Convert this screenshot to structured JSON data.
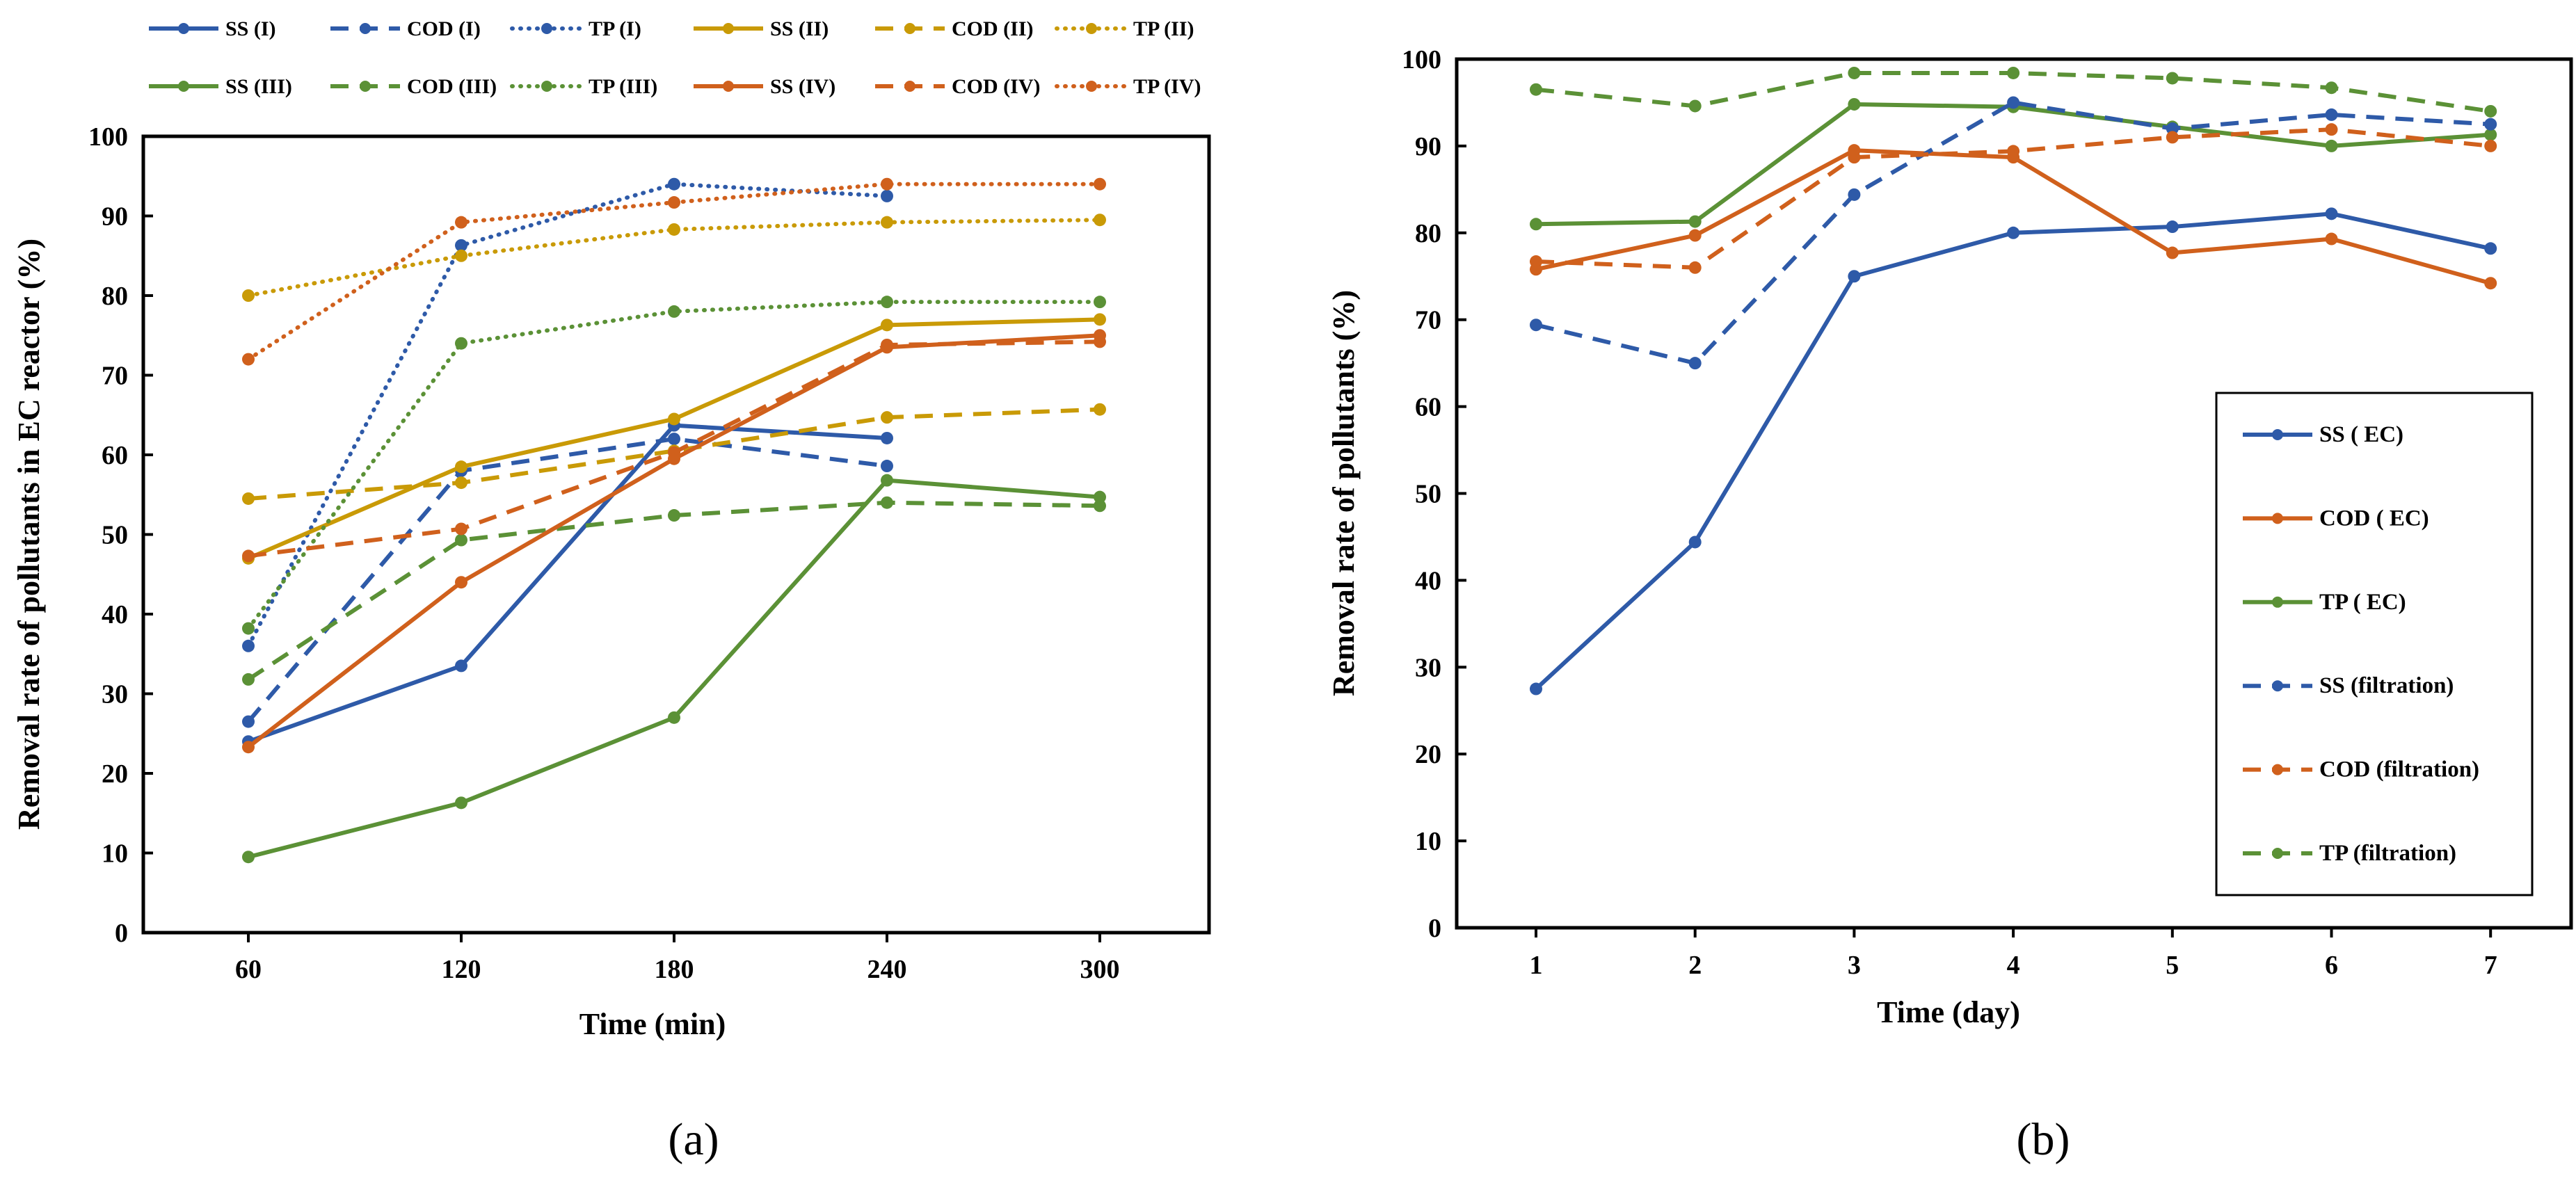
{
  "chart_data": [
    {
      "type": "line",
      "panel_label": "(a)",
      "xlabel": "Time (min)",
      "ylabel": "Removal rate of pollutants in EC reactor (%)",
      "categories": [
        "60",
        "120",
        "180",
        "240",
        "300"
      ],
      "ylim": [
        0,
        100
      ],
      "yticks": [
        0,
        10,
        20,
        30,
        40,
        50,
        60,
        70,
        80,
        90,
        100
      ],
      "grid": false,
      "legend_position": "top",
      "series": [
        {
          "name": "SS (I)",
          "color": "#2E5AA8",
          "style": "solid",
          "values": [
            24,
            33.5,
            63.7,
            62.1,
            null
          ]
        },
        {
          "name": "COD (I)",
          "color": "#2E5AA8",
          "style": "dashed",
          "values": [
            26.5,
            58,
            62,
            58.6,
            null
          ]
        },
        {
          "name": "TP (I)",
          "color": "#2E5AA8",
          "style": "dotted",
          "values": [
            36,
            86.3,
            94,
            92.5,
            null
          ]
        },
        {
          "name": "SS (II)",
          "color": "#C99A06",
          "style": "solid",
          "values": [
            47,
            58.5,
            64.5,
            76.3,
            77
          ]
        },
        {
          "name": "COD (II)",
          "color": "#C99A06",
          "style": "dashed",
          "values": [
            54.5,
            56.5,
            60.5,
            64.7,
            65.7
          ]
        },
        {
          "name": "TP (II)",
          "color": "#C99A06",
          "style": "dotted",
          "values": [
            80,
            85,
            88.3,
            89.2,
            89.5
          ]
        },
        {
          "name": "SS (III)",
          "color": "#5B9136",
          "style": "solid",
          "values": [
            9.5,
            16.3,
            27,
            56.8,
            54.7
          ]
        },
        {
          "name": "COD (III)",
          "color": "#5B9136",
          "style": "dashed",
          "values": [
            31.8,
            49.3,
            52.4,
            54,
            53.6
          ]
        },
        {
          "name": "TP (III)",
          "color": "#5B9136",
          "style": "dotted",
          "values": [
            38.2,
            74,
            78,
            79.2,
            79.2
          ]
        },
        {
          "name": "SS (IV)",
          "color": "#D0601C",
          "style": "solid",
          "values": [
            23.3,
            44,
            59.5,
            73.5,
            75
          ]
        },
        {
          "name": "COD (IV)",
          "color": "#D0601C",
          "style": "dashed",
          "values": [
            47.3,
            50.7,
            60.3,
            73.8,
            74.2
          ]
        },
        {
          "name": "TP (IV)",
          "color": "#D0601C",
          "style": "dotted",
          "values": [
            72,
            89.2,
            91.7,
            94,
            94
          ]
        }
      ]
    },
    {
      "type": "line",
      "panel_label": "(b)",
      "xlabel": "Time (day)",
      "ylabel": "Removal rate of pollutants (%)",
      "categories": [
        "1",
        "2",
        "3",
        "4",
        "5",
        "6",
        "7"
      ],
      "ylim": [
        0,
        100
      ],
      "yticks": [
        0,
        10,
        20,
        30,
        40,
        50,
        60,
        70,
        80,
        90,
        100
      ],
      "grid": false,
      "legend_position": "bottom-right",
      "series": [
        {
          "name": "SS ( EC)",
          "color": "#2E5AA8",
          "style": "solid",
          "values": [
            27.5,
            44.4,
            75,
            80,
            80.7,
            82.2,
            78.2
          ]
        },
        {
          "name": "COD ( EC)",
          "color": "#D0601C",
          "style": "solid",
          "values": [
            75.8,
            79.7,
            89.5,
            88.7,
            77.7,
            79.3,
            74.2
          ]
        },
        {
          "name": "TP ( EC)",
          "color": "#5B9136",
          "style": "solid",
          "values": [
            81,
            81.3,
            94.8,
            94.5,
            92.2,
            90,
            91.3
          ]
        },
        {
          "name": "SS (filtration)",
          "color": "#2E5AA8",
          "style": "dashed",
          "values": [
            69.4,
            65,
            84.4,
            95,
            92,
            93.6,
            92.5
          ]
        },
        {
          "name": "COD (filtration)",
          "color": "#D0601C",
          "style": "dashed",
          "values": [
            76.7,
            76,
            88.7,
            89.4,
            91,
            91.9,
            90
          ]
        },
        {
          "name": "TP (filtration)",
          "color": "#5B9136",
          "style": "dashed",
          "values": [
            96.5,
            94.6,
            98.4,
            98.4,
            97.8,
            96.7,
            94
          ]
        }
      ]
    }
  ]
}
